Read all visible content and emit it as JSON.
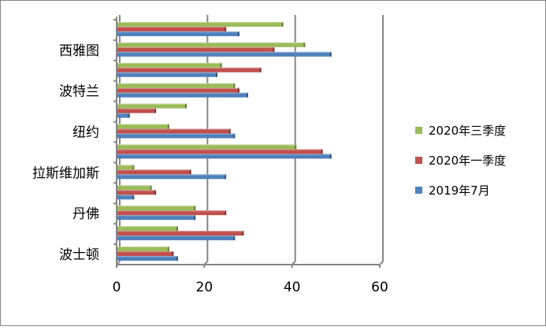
{
  "chart_data": {
    "type": "bar",
    "orientation": "horizontal",
    "categories": [
      "波士顿",
      "",
      "丹佛",
      "",
      "拉斯维加斯",
      "",
      "纽约",
      "",
      "波特兰",
      "",
      "西雅图",
      ""
    ],
    "series": [
      {
        "name": "2019年7月",
        "color": "#4f81bd",
        "values": [
          14,
          27,
          18,
          4,
          25,
          49,
          27,
          3,
          30,
          23,
          49,
          28
        ]
      },
      {
        "name": "2020年一季度",
        "color": "#c0504d",
        "values": [
          13,
          29,
          25,
          9,
          17,
          47,
          26,
          9,
          28,
          33,
          36,
          25
        ]
      },
      {
        "name": "2020年三季度",
        "color": "#9bbb59",
        "values": [
          12,
          14,
          18,
          8,
          4,
          41,
          12,
          16,
          27,
          24,
          43,
          38
        ]
      }
    ],
    "xlim": [
      0,
      60
    ],
    "xticks": [
      "0",
      "20",
      "40",
      "60"
    ],
    "grid": true,
    "legend_position": "right",
    "title": "",
    "xlabel": "",
    "ylabel": ""
  }
}
